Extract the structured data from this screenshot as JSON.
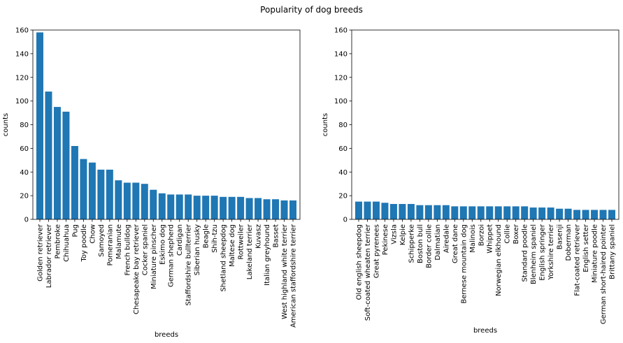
{
  "title": "Popularity of dog breeds",
  "colors": {
    "bar": "#1f77b4",
    "axis": "#000000",
    "background": "#ffffff"
  },
  "chart_data": [
    {
      "type": "bar",
      "xlabel": "breeds",
      "ylabel": "counts",
      "ylim": [
        0,
        160
      ],
      "yticks": [
        0,
        20,
        40,
        60,
        80,
        100,
        120,
        140,
        160
      ],
      "grid": false,
      "categories": [
        "Golden retriever",
        "Labrador retriever",
        "Pembroke",
        "Chihuahua",
        "Pug",
        "Toy poodle",
        "Chow",
        "Samoyed",
        "Pomeranian",
        "Malamute",
        "French bulldog",
        "Chesapeake bay retriever",
        "Cocker spaniel",
        "Miniature pinscher",
        "Eskimo dog",
        "German shepherd",
        "Cardigan",
        "Staffordshire bullterrier",
        "Siberian husky",
        "Beagle",
        "Shih-tzu",
        "Shetland sheepdog",
        "Maltese dog",
        "Rottweiler",
        "Lakeland terrier",
        "Kuvasz",
        "Italian greyhound",
        "Basset",
        "West highland white terrier",
        "American staffordshire terrier"
      ],
      "values": [
        158,
        108,
        95,
        91,
        62,
        51,
        48,
        42,
        42,
        33,
        31,
        31,
        30,
        25,
        22,
        21,
        21,
        21,
        20,
        20,
        20,
        19,
        19,
        19,
        18,
        18,
        17,
        17,
        16,
        16
      ]
    },
    {
      "type": "bar",
      "xlabel": "breeds",
      "ylabel": "counts",
      "ylim": [
        0,
        160
      ],
      "yticks": [
        0,
        20,
        40,
        60,
        80,
        100,
        120,
        140,
        160
      ],
      "grid": false,
      "categories": [
        "Old english sheepdog",
        "Soft-coated wheaten terrier",
        "Great pyrenees",
        "Pekinese",
        "Vizsla",
        "Kelpie",
        "Schipperke",
        "Boston bull",
        "Border collie",
        "Dalmatian",
        "Airedale",
        "Great dane",
        "Bernese mountain dog",
        "Malinois",
        "Borzoi",
        "Whippet",
        "Norwegian elkhound",
        "Collie",
        "Boxer",
        "Standard poodle",
        "Blenheim spaniel",
        "English springer",
        "Yorkshire terrier",
        "Basenji",
        "Doberman",
        "Flat-coated retriever",
        "English setter",
        "Miniature poodle",
        "German short-haired pointer",
        "Brittany spaniel"
      ],
      "values": [
        15,
        15,
        15,
        14,
        13,
        13,
        13,
        12,
        12,
        12,
        12,
        11,
        11,
        11,
        11,
        11,
        11,
        11,
        11,
        11,
        10,
        10,
        10,
        9,
        9,
        8,
        8,
        8,
        8,
        8
      ]
    }
  ]
}
